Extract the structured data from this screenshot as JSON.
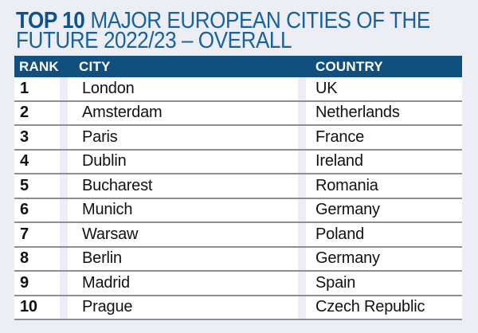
{
  "colors": {
    "page-bg": "#edeef5",
    "header-bg": "#114f7f",
    "header-text": "#ffffff",
    "title-bold": "#0d528f",
    "title-regular": "#17619c",
    "row-bg": "#ffffff",
    "row-text": "#111111",
    "divider": "#8e8e96"
  },
  "title": {
    "bold": "TOP 10",
    "line1_rest": "MAJOR EUROPEAN CITIES OF THE",
    "line2": "FUTURE 2022/23 – OVERALL"
  },
  "table": {
    "headers": {
      "rank": "RANK",
      "city": "CITY",
      "country": "COUNTRY"
    },
    "rows": [
      {
        "rank": "1",
        "city": "London",
        "country": "UK"
      },
      {
        "rank": "2",
        "city": "Amsterdam",
        "country": "Netherlands"
      },
      {
        "rank": "3",
        "city": "Paris",
        "country": "France"
      },
      {
        "rank": "4",
        "city": "Dublin",
        "country": "Ireland"
      },
      {
        "rank": "5",
        "city": "Bucharest",
        "country": "Romania"
      },
      {
        "rank": "6",
        "city": "Munich",
        "country": "Germany"
      },
      {
        "rank": "7",
        "city": "Warsaw",
        "country": "Poland"
      },
      {
        "rank": "8",
        "city": "Berlin",
        "country": "Germany"
      },
      {
        "rank": "9",
        "city": "Madrid",
        "country": "Spain"
      },
      {
        "rank": "10",
        "city": "Prague",
        "country": "Czech Republic"
      }
    ]
  },
  "chart_data": {
    "type": "table",
    "title": "TOP 10 MAJOR EUROPEAN CITIES OF THE FUTURE 2022/23 – OVERALL",
    "columns": [
      "RANK",
      "CITY",
      "COUNTRY"
    ],
    "rows": [
      [
        "1",
        "London",
        "UK"
      ],
      [
        "2",
        "Amsterdam",
        "Netherlands"
      ],
      [
        "3",
        "Paris",
        "France"
      ],
      [
        "4",
        "Dublin",
        "Ireland"
      ],
      [
        "5",
        "Bucharest",
        "Romania"
      ],
      [
        "6",
        "Munich",
        "Germany"
      ],
      [
        "7",
        "Warsaw",
        "Poland"
      ],
      [
        "8",
        "Berlin",
        "Germany"
      ],
      [
        "9",
        "Madrid",
        "Spain"
      ],
      [
        "10",
        "Prague",
        "Czech Republic"
      ]
    ]
  }
}
